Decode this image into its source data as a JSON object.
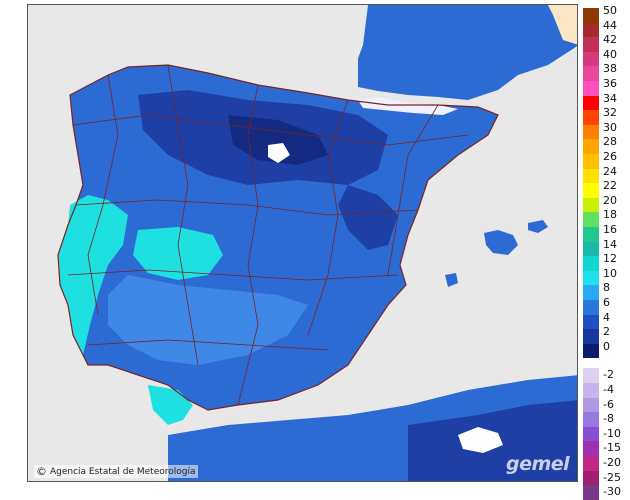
{
  "credit": {
    "copyright_symbol": "©",
    "agency": "Agencia Estatal de Meteorología"
  },
  "watermark": "gemel",
  "colors": {
    "sea": "#e8e8e8",
    "land_mid": "#2d6bd4",
    "land_dark": "#1e3fa6",
    "land_darkest": "#142a80",
    "land_light": "#3f88e8",
    "land_cyan": "#1fe0e0",
    "border": "#7a2222",
    "frame": "#555555"
  },
  "legend": {
    "positive": [
      {
        "label": "50",
        "color": "#8b3a00"
      },
      {
        "label": "44",
        "color": "#a52a2a"
      },
      {
        "label": "42",
        "color": "#c0305a"
      },
      {
        "label": "40",
        "color": "#d63a7a"
      },
      {
        "label": "38",
        "color": "#e8479a"
      },
      {
        "label": "36",
        "color": "#ff4fbf"
      },
      {
        "label": "34",
        "color": "#ff0000"
      },
      {
        "label": "32",
        "color": "#ff4500"
      },
      {
        "label": "30",
        "color": "#ff7f00"
      },
      {
        "label": "28",
        "color": "#ffa500"
      },
      {
        "label": "26",
        "color": "#ffc000"
      },
      {
        "label": "24",
        "color": "#ffe000"
      },
      {
        "label": "22",
        "color": "#ffff00"
      },
      {
        "label": "20",
        "color": "#c8f000"
      },
      {
        "label": "18",
        "color": "#60e060"
      },
      {
        "label": "16",
        "color": "#20c890"
      },
      {
        "label": "14",
        "color": "#1ab8a8"
      },
      {
        "label": "12",
        "color": "#10d8d0"
      },
      {
        "label": "10",
        "color": "#20e0f0"
      },
      {
        "label": "8",
        "color": "#2aa8f0"
      },
      {
        "label": "6",
        "color": "#2878e0"
      },
      {
        "label": "4",
        "color": "#2050c0"
      },
      {
        "label": "2",
        "color": "#1838a0"
      },
      {
        "label": "0",
        "color": "#0a1c70"
      }
    ],
    "negative": [
      {
        "label": "-2",
        "color": "#ddd0f0"
      },
      {
        "label": "-4",
        "color": "#c8b4ea"
      },
      {
        "label": "-6",
        "color": "#b098e4"
      },
      {
        "label": "-8",
        "color": "#9a78de"
      },
      {
        "label": "-10",
        "color": "#8850d6"
      },
      {
        "label": "-15",
        "color": "#a030b0"
      },
      {
        "label": "-20",
        "color": "#c02888"
      },
      {
        "label": "-25",
        "color": "#a02070"
      },
      {
        "label": "-30",
        "color": "#7a3888"
      }
    ]
  }
}
